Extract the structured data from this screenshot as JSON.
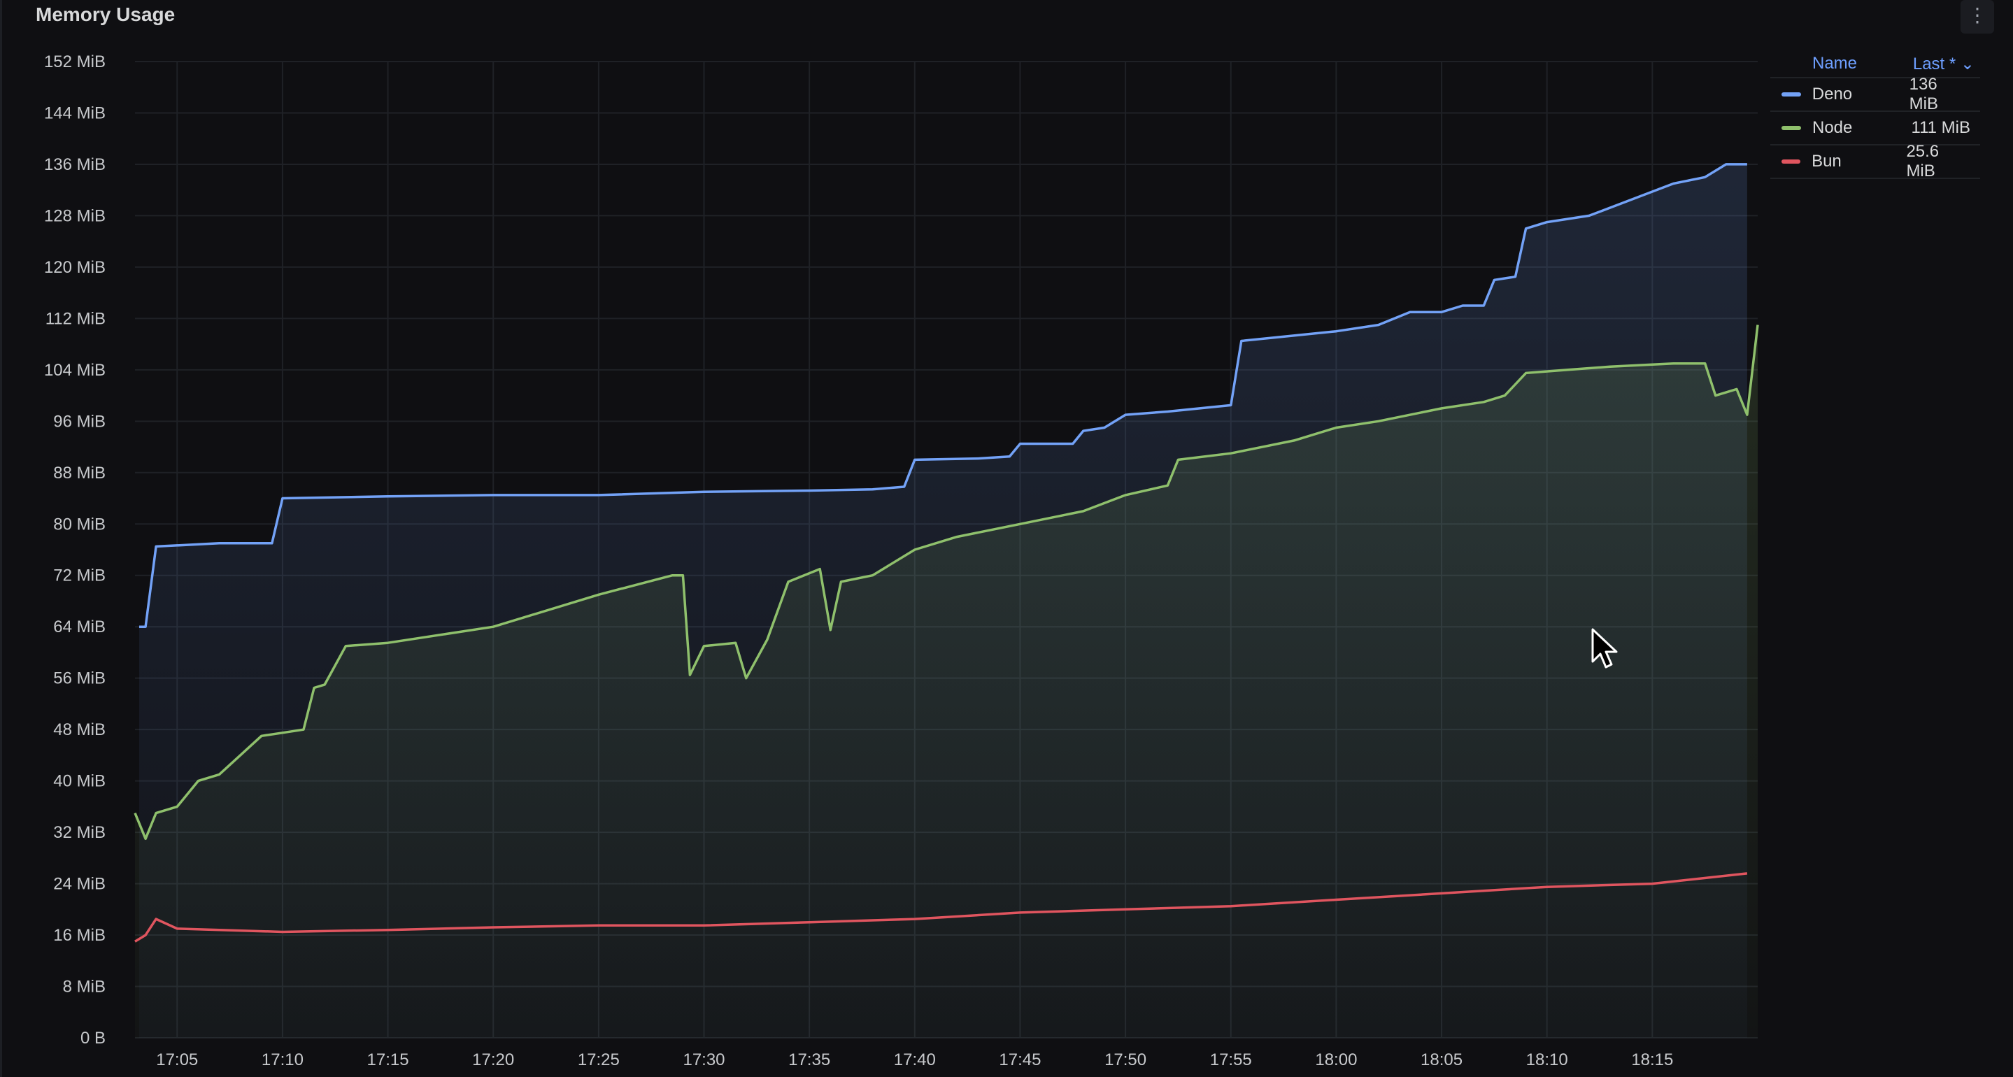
{
  "panel": {
    "title": "Memory Usage",
    "menu_icon": "kebab-menu-icon",
    "menu_glyph": "⋮"
  },
  "legend": {
    "name_header": "Name",
    "last_header": "Last * ⌄",
    "items": [
      {
        "name": "Deno",
        "last": "136 MiB",
        "color": "#73a2f7"
      },
      {
        "name": "Node",
        "last": "111 MiB",
        "color": "#8fc06c"
      },
      {
        "name": "Bun",
        "last": "25.6 MiB",
        "color": "#e0555f"
      }
    ]
  },
  "chart_data": {
    "type": "line",
    "title": "Memory Usage",
    "xlabel": "",
    "ylabel": "",
    "xlim": [
      "17:03",
      "18:20"
    ],
    "ylim": [
      0,
      152
    ],
    "y_unit": "MiB",
    "y_ticks": [
      "0 B",
      "8 MiB",
      "16 MiB",
      "24 MiB",
      "32 MiB",
      "40 MiB",
      "48 MiB",
      "56 MiB",
      "64 MiB",
      "72 MiB",
      "80 MiB",
      "88 MiB",
      "96 MiB",
      "104 MiB",
      "112 MiB",
      "120 MiB",
      "128 MiB",
      "136 MiB",
      "144 MiB",
      "152 MiB"
    ],
    "x_ticks": [
      "17:05",
      "17:10",
      "17:15",
      "17:20",
      "17:25",
      "17:30",
      "17:35",
      "17:40",
      "17:45",
      "17:50",
      "17:55",
      "18:00",
      "18:05",
      "18:10",
      "18:15"
    ],
    "grid": true,
    "legend_position": "right",
    "series": [
      {
        "name": "Deno",
        "color": "#73a2f7",
        "fill": true,
        "points": [
          [
            "17:03:12",
            64
          ],
          [
            "17:03:30",
            64
          ],
          [
            "17:04:00",
            76.5
          ],
          [
            "17:07:00",
            77
          ],
          [
            "17:09:30",
            77
          ],
          [
            "17:10:00",
            84
          ],
          [
            "17:15:00",
            84.3
          ],
          [
            "17:20:00",
            84.5
          ],
          [
            "17:25:00",
            84.5
          ],
          [
            "17:30:00",
            85
          ],
          [
            "17:35:00",
            85.2
          ],
          [
            "17:38:00",
            85.4
          ],
          [
            "17:39:30",
            85.8
          ],
          [
            "17:40:00",
            90
          ],
          [
            "17:43:00",
            90.2
          ],
          [
            "17:44:30",
            90.5
          ],
          [
            "17:45:00",
            92.5
          ],
          [
            "17:47:30",
            92.5
          ],
          [
            "17:48:00",
            94.5
          ],
          [
            "17:49:00",
            95
          ],
          [
            "17:50:00",
            97
          ],
          [
            "17:52:00",
            97.5
          ],
          [
            "17:55:00",
            98.5
          ],
          [
            "17:55:30",
            108.5
          ],
          [
            "17:57:00",
            109
          ],
          [
            "18:00:00",
            110
          ],
          [
            "18:02:00",
            111
          ],
          [
            "18:03:30",
            113
          ],
          [
            "18:05:00",
            113
          ],
          [
            "18:06:00",
            114
          ],
          [
            "18:07:00",
            114
          ],
          [
            "18:07:30",
            118
          ],
          [
            "18:08:30",
            118.5
          ],
          [
            "18:09:00",
            126
          ],
          [
            "18:10:00",
            127
          ],
          [
            "18:12:00",
            128
          ],
          [
            "18:14:00",
            130.5
          ],
          [
            "18:16:00",
            133
          ],
          [
            "18:17:30",
            134
          ],
          [
            "18:18:30",
            136
          ],
          [
            "18:19:30",
            136
          ]
        ]
      },
      {
        "name": "Node",
        "color": "#8fc06c",
        "fill": true,
        "points": [
          [
            "17:03:00",
            35
          ],
          [
            "17:03:30",
            31
          ],
          [
            "17:04:00",
            35
          ],
          [
            "17:05:00",
            36
          ],
          [
            "17:06:00",
            40
          ],
          [
            "17:07:00",
            41
          ],
          [
            "17:08:00",
            44
          ],
          [
            "17:09:00",
            47
          ],
          [
            "17:10:00",
            47.5
          ],
          [
            "17:11:00",
            48
          ],
          [
            "17:11:30",
            54.5
          ],
          [
            "17:12:00",
            55
          ],
          [
            "17:13:00",
            61
          ],
          [
            "17:15:00",
            61.5
          ],
          [
            "17:20:00",
            64
          ],
          [
            "17:25:00",
            69
          ],
          [
            "17:28:30",
            72
          ],
          [
            "17:29:00",
            72
          ],
          [
            "17:29:20",
            56.5
          ],
          [
            "17:30:00",
            61
          ],
          [
            "17:31:30",
            61.5
          ],
          [
            "17:32:00",
            56
          ],
          [
            "17:33:00",
            62
          ],
          [
            "17:34:00",
            71
          ],
          [
            "17:35:30",
            73
          ],
          [
            "17:36:00",
            63.5
          ],
          [
            "17:36:30",
            71
          ],
          [
            "17:38:00",
            72
          ],
          [
            "17:40:00",
            76
          ],
          [
            "17:42:00",
            78
          ],
          [
            "17:45:00",
            80
          ],
          [
            "17:48:00",
            82
          ],
          [
            "17:50:00",
            84.5
          ],
          [
            "17:52:00",
            86
          ],
          [
            "17:52:30",
            90
          ],
          [
            "17:55:00",
            91
          ],
          [
            "17:58:00",
            93
          ],
          [
            "18:00:00",
            95
          ],
          [
            "18:02:00",
            96
          ],
          [
            "18:05:00",
            98
          ],
          [
            "18:07:00",
            99
          ],
          [
            "18:08:00",
            100
          ],
          [
            "18:09:00",
            103.5
          ],
          [
            "18:11:00",
            104
          ],
          [
            "18:13:00",
            104.5
          ],
          [
            "18:16:00",
            105
          ],
          [
            "18:17:30",
            105
          ],
          [
            "18:18:00",
            100
          ],
          [
            "18:19:00",
            101
          ],
          [
            "18:19:30",
            97
          ],
          [
            "18:20:00",
            111
          ]
        ]
      },
      {
        "name": "Bun",
        "color": "#e0555f",
        "fill": false,
        "points": [
          [
            "17:03:00",
            15
          ],
          [
            "17:03:30",
            16
          ],
          [
            "17:04:00",
            18.5
          ],
          [
            "17:05:00",
            17
          ],
          [
            "17:10:00",
            16.5
          ],
          [
            "17:15:00",
            16.8
          ],
          [
            "17:20:00",
            17.2
          ],
          [
            "17:25:00",
            17.5
          ],
          [
            "17:30:00",
            17.5
          ],
          [
            "17:35:00",
            18
          ],
          [
            "17:40:00",
            18.5
          ],
          [
            "17:45:00",
            19.5
          ],
          [
            "17:50:00",
            20
          ],
          [
            "17:55:00",
            20.5
          ],
          [
            "18:00:00",
            21.5
          ],
          [
            "18:05:00",
            22.5
          ],
          [
            "18:10:00",
            23.5
          ],
          [
            "18:15:00",
            24
          ],
          [
            "18:19:30",
            25.6
          ]
        ]
      }
    ]
  }
}
